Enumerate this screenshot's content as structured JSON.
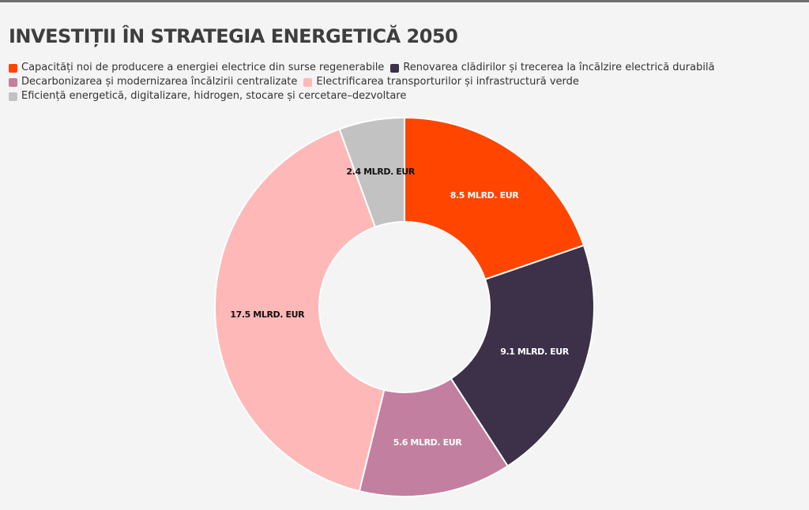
{
  "chart_data": {
    "type": "pie",
    "title": "INVESTIȚII ÎN STRATEGIA ENERGETICĂ 2050",
    "legend_position": "top-left",
    "unit": "MLRD. EUR",
    "series": [
      {
        "name": "Capacități noi de producere a energiei electrice din surse regenerabile",
        "value": 8.5,
        "label": "8.5 MLRD. EUR",
        "color": "#ff4500",
        "label_color": "#ffffff"
      },
      {
        "name": "Renovarea clădirilor și trecerea la încălzire electrică durabilă",
        "value": 9.1,
        "label": "9.1 MLRD. EUR",
        "color": "#3d3049",
        "label_color": "#ffffff"
      },
      {
        "name": "Decarbonizarea și modernizarea încălzirii centralizate",
        "value": 5.6,
        "label": "5.6 MLRD. EUR",
        "color": "#c37f9f",
        "label_color": "#ffffff"
      },
      {
        "name": "Electrificarea transporturilor și infrastructură verde",
        "value": 17.5,
        "label": "17.5 MLRD. EUR",
        "color": "#ffb8b8",
        "label_color": "#111111"
      },
      {
        "name": "Eficiență energetică, digitalizare, hidrogen, stocare și cercetare–dezvoltare",
        "value": 2.4,
        "label": "2.4 MLRD. EUR",
        "color": "#c2c2c2",
        "label_color": "#111111"
      }
    ]
  }
}
